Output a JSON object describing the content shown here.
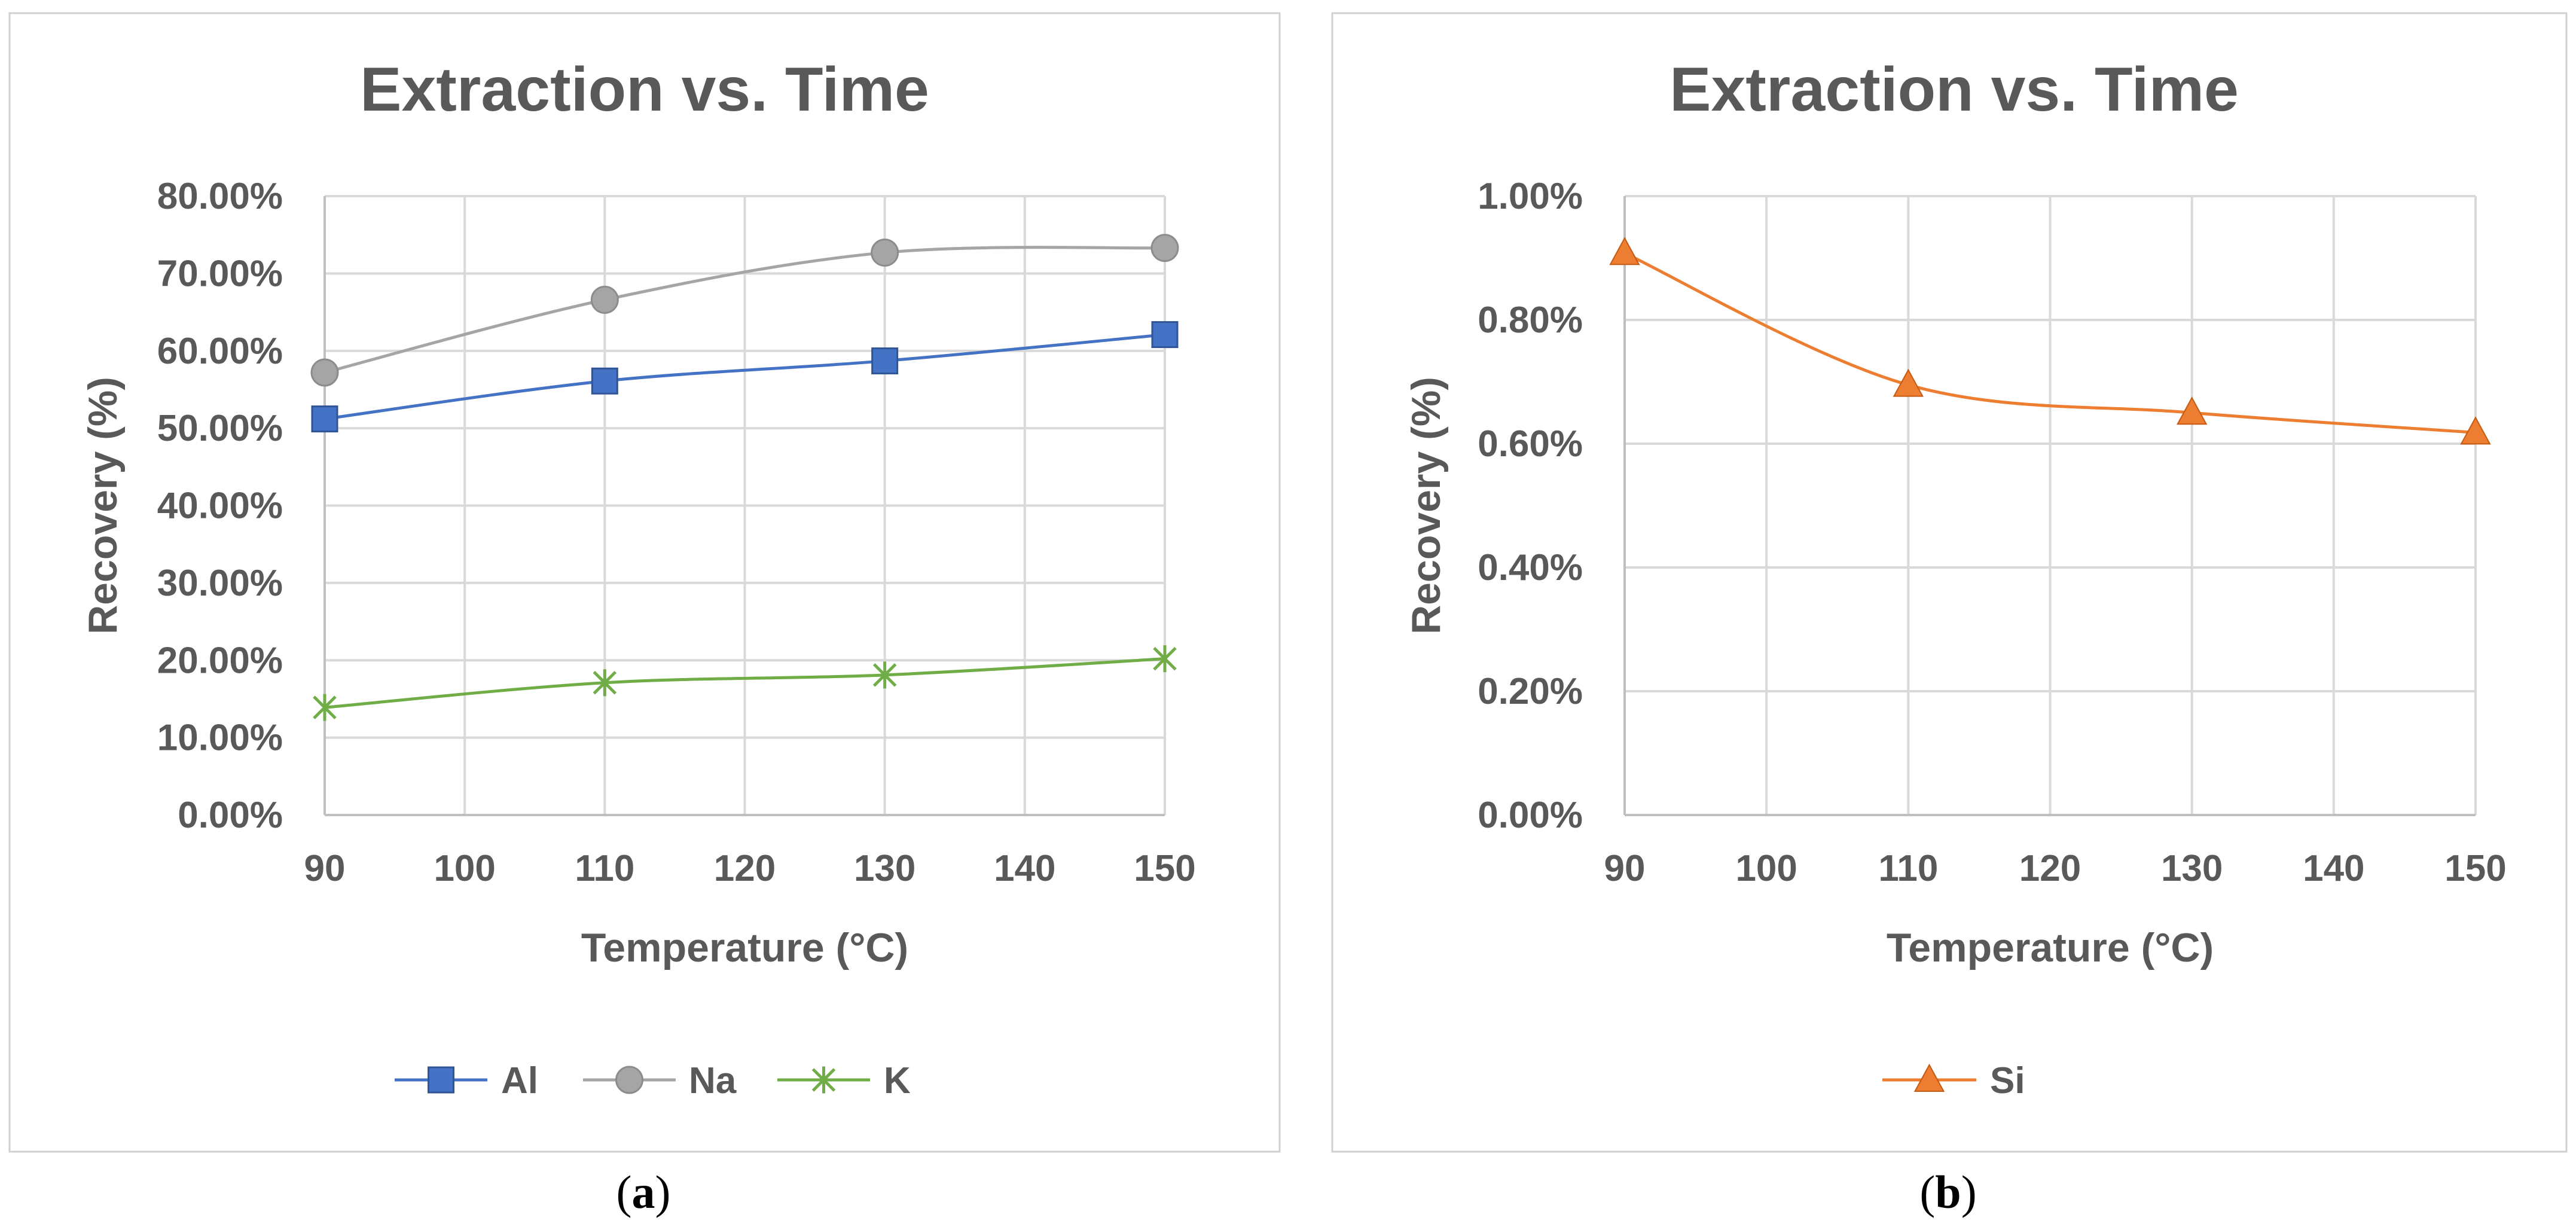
{
  "chart_data": [
    {
      "type": "line",
      "panel_label": "a",
      "title": "Extraction vs. Time",
      "xlabel": "Temperature (°C)",
      "ylabel": "Recovery (%)",
      "xlim": [
        90,
        150
      ],
      "ylim": [
        0,
        0.8
      ],
      "x_ticks": [
        90,
        100,
        110,
        120,
        130,
        140,
        150
      ],
      "x_tick_labels": [
        "90",
        "100",
        "110",
        "120",
        "130",
        "140",
        "150"
      ],
      "y_ticks": [
        0,
        0.1,
        0.2,
        0.3,
        0.4,
        0.5,
        0.6,
        0.7,
        0.8
      ],
      "y_tick_labels": [
        "0.00%",
        "10.00%",
        "20.00%",
        "30.00%",
        "40.00%",
        "50.00%",
        "60.00%",
        "70.00%",
        "80.00%"
      ],
      "grid": true,
      "legend_position": "bottom",
      "series": [
        {
          "name": "Al",
          "color": "#4472c4",
          "marker": "square",
          "x": [
            90,
            110,
            130,
            150
          ],
          "values": [
            0.512,
            0.561,
            0.587,
            0.621
          ]
        },
        {
          "name": "Na",
          "color": "#a5a5a5",
          "marker": "circle",
          "x": [
            90,
            110,
            130,
            150
          ],
          "values": [
            0.572,
            0.666,
            0.727,
            0.733
          ]
        },
        {
          "name": "K",
          "color": "#70ad47",
          "marker": "star",
          "x": [
            90,
            110,
            130,
            150
          ],
          "values": [
            0.139,
            0.171,
            0.181,
            0.202
          ]
        }
      ]
    },
    {
      "type": "line",
      "panel_label": "b",
      "title": "Extraction vs. Time",
      "xlabel": "Temperature (°C)",
      "ylabel": "Recovery (%)",
      "xlim": [
        90,
        150
      ],
      "ylim": [
        0,
        0.01
      ],
      "x_ticks": [
        90,
        100,
        110,
        120,
        130,
        140,
        150
      ],
      "x_tick_labels": [
        "90",
        "100",
        "110",
        "120",
        "130",
        "140",
        "150"
      ],
      "y_ticks": [
        0,
        0.002,
        0.004,
        0.006,
        0.008,
        0.01
      ],
      "y_tick_labels": [
        "0.00%",
        "0.20%",
        "0.40%",
        "0.60%",
        "0.80%",
        "1.00%"
      ],
      "grid": true,
      "legend_position": "bottom",
      "series": [
        {
          "name": "Si",
          "color": "#ed7d31",
          "marker": "triangle",
          "x": [
            90,
            110,
            130,
            150
          ],
          "values": [
            0.00908,
            0.00695,
            0.0065,
            0.00618
          ]
        }
      ]
    }
  ],
  "captions": [
    {
      "open": "(",
      "letter": "a",
      "close": ")"
    },
    {
      "open": "(",
      "letter": "b",
      "close": ")"
    }
  ]
}
